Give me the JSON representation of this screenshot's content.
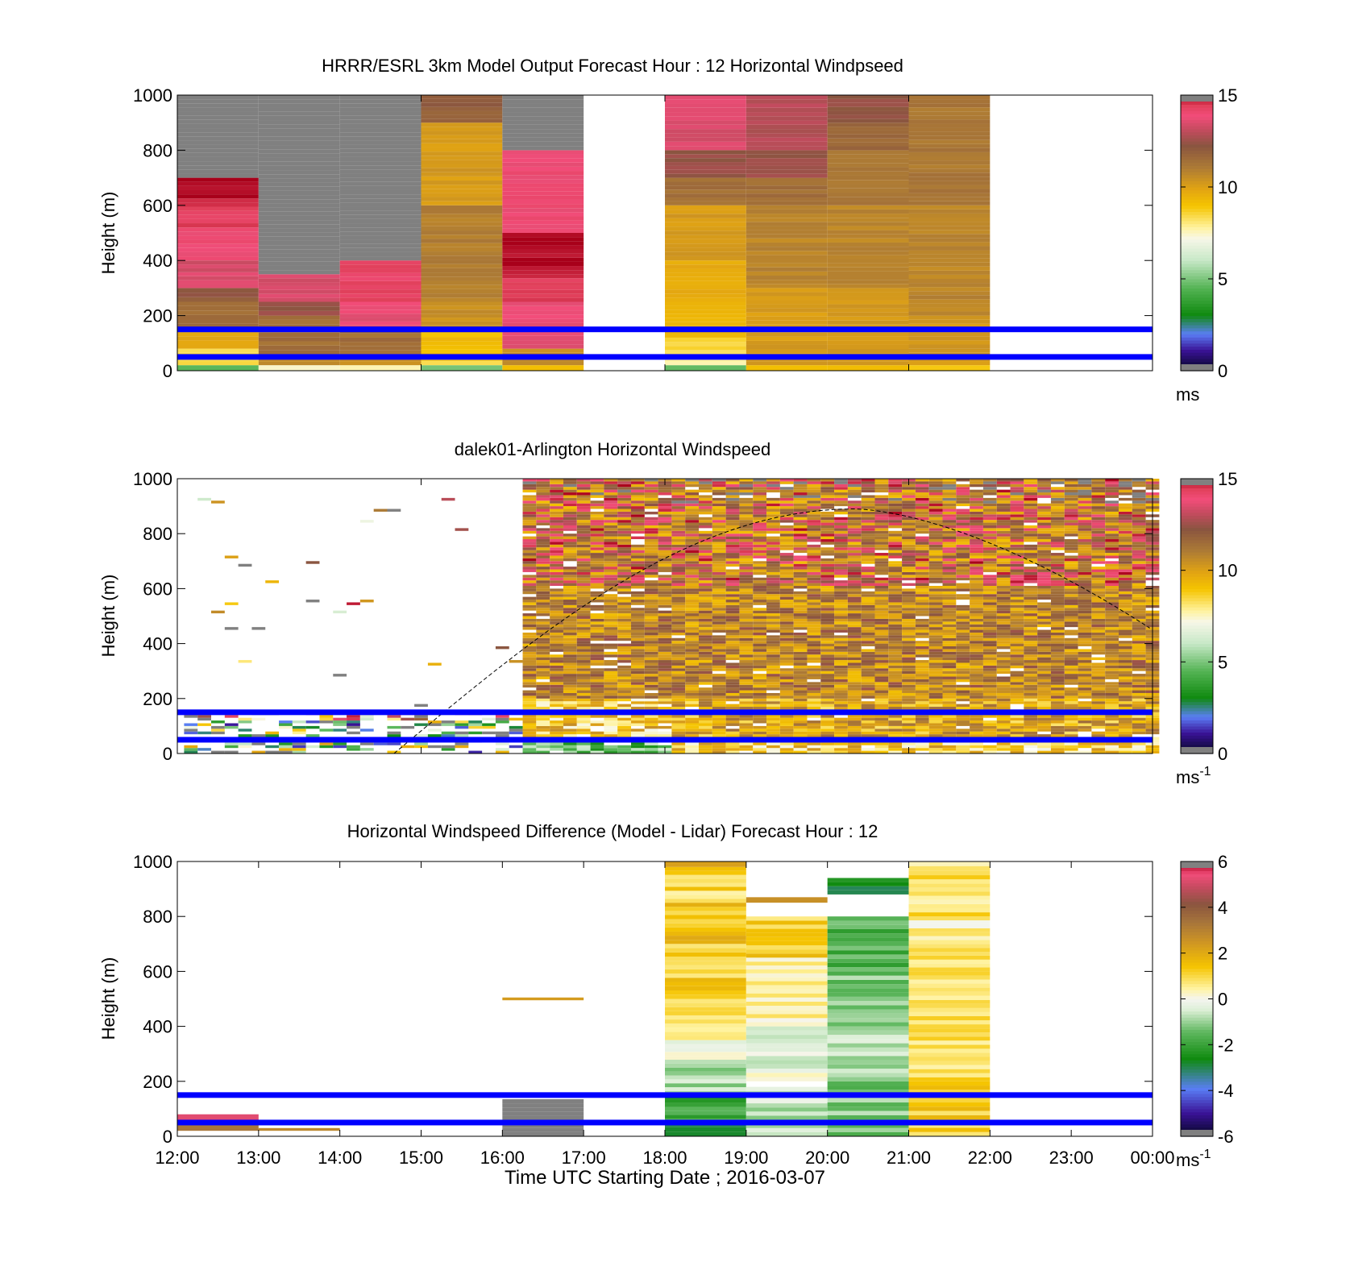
{
  "chart_data": [
    {
      "type": "heatmap",
      "title": "HRRR/ESRL 3km Model Output   Forecast Hour : 12 Horizontal Windpseed",
      "xlabel": "",
      "ylabel": "Height (m)",
      "ylim": [
        0,
        1000
      ],
      "yticks": [
        "0",
        "200",
        "400",
        "600",
        "800",
        "1000"
      ],
      "colorbar": {
        "min": 0,
        "max": 15,
        "ticks": [
          "0",
          "5",
          "10",
          "15"
        ],
        "unit": "ms",
        "unit_sup": ""
      },
      "time_range_hours": [
        12,
        24
      ],
      "reference_lines_m": [
        50,
        150
      ],
      "columns": [
        {
          "start": "12:00",
          "end": "13:00",
          "layers": [
            [
              0,
              20,
              4.5
            ],
            [
              20,
              80,
              8.5
            ],
            [
              80,
              140,
              10
            ],
            [
              140,
              250,
              11.5
            ],
            [
              250,
              300,
              12.2
            ],
            [
              300,
              400,
              13.5
            ],
            [
              400,
              520,
              14
            ],
            [
              520,
              610,
              14.5
            ],
            [
              610,
              700,
              14.9
            ],
            [
              700,
              1000,
              "nan"
            ]
          ]
        },
        {
          "start": "13:00",
          "end": "14:00",
          "layers": [
            [
              0,
              20,
              7.6
            ],
            [
              20,
              60,
              10.5
            ],
            [
              60,
              200,
              11.5
            ],
            [
              200,
              250,
              12.5
            ],
            [
              250,
              350,
              13.5
            ],
            [
              350,
              1000,
              "nan"
            ]
          ]
        },
        {
          "start": "14:00",
          "end": "15:00",
          "layers": [
            [
              0,
              20,
              7.6
            ],
            [
              20,
              60,
              10.5
            ],
            [
              60,
              150,
              11.5
            ],
            [
              150,
              250,
              13.8
            ],
            [
              250,
              400,
              14.3
            ],
            [
              400,
              1000,
              "nan"
            ]
          ]
        },
        {
          "start": "15:00",
          "end": "16:00",
          "layers": [
            [
              0,
              20,
              5
            ],
            [
              20,
              50,
              8.5
            ],
            [
              50,
              150,
              9.2
            ],
            [
              150,
              250,
              10.5
            ],
            [
              250,
              600,
              11
            ],
            [
              600,
              900,
              10.2
            ],
            [
              900,
              1000,
              12
            ]
          ]
        },
        {
          "start": "16:00",
          "end": "17:00",
          "layers": [
            [
              0,
              20,
              9.2
            ],
            [
              20,
              80,
              10.5
            ],
            [
              80,
              250,
              13.8
            ],
            [
              250,
              350,
              14.5
            ],
            [
              350,
              500,
              15
            ],
            [
              500,
              800,
              14
            ],
            [
              800,
              1000,
              "nan"
            ]
          ]
        },
        {
          "start": "18:00",
          "end": "19:00",
          "layers": [
            [
              0,
              20,
              4.5
            ],
            [
              20,
              60,
              7.6
            ],
            [
              60,
              120,
              8.5
            ],
            [
              120,
              250,
              9.5
            ],
            [
              250,
              400,
              9.8
            ],
            [
              400,
              600,
              10.2
            ],
            [
              600,
              700,
              11.5
            ],
            [
              700,
              800,
              12.5
            ],
            [
              800,
              1000,
              13.6
            ]
          ]
        },
        {
          "start": "19:00",
          "end": "20:00",
          "layers": [
            [
              0,
              20,
              9
            ],
            [
              20,
              300,
              10.2
            ],
            [
              300,
              600,
              10.8
            ],
            [
              600,
              700,
              11.5
            ],
            [
              700,
              800,
              12.5
            ],
            [
              800,
              1000,
              13
            ]
          ]
        },
        {
          "start": "20:00",
          "end": "21:00",
          "layers": [
            [
              0,
              20,
              9
            ],
            [
              20,
              300,
              10.2
            ],
            [
              300,
              600,
              10.8
            ],
            [
              600,
              800,
              11.2
            ],
            [
              800,
              900,
              11.7
            ],
            [
              900,
              1000,
              12.4
            ]
          ]
        },
        {
          "start": "21:00",
          "end": "22:00",
          "layers": [
            [
              0,
              20,
              9
            ],
            [
              20,
              200,
              10.2
            ],
            [
              200,
              600,
              10.8
            ],
            [
              600,
              1000,
              11.2
            ]
          ]
        }
      ]
    },
    {
      "type": "heatmap",
      "title": "dalek01-Arlington  Horizontal Windspeed",
      "xlabel": "",
      "ylabel": "Height (m)",
      "ylim": [
        0,
        1000
      ],
      "yticks": [
        "0",
        "200",
        "400",
        "600",
        "800",
        "1000"
      ],
      "colorbar": {
        "min": 0,
        "max": 15,
        "ticks": [
          "0",
          "5",
          "10",
          "15"
        ],
        "unit": "ms",
        "unit_sup": "-1"
      },
      "time_range_hours": [
        12,
        24
      ],
      "reference_lines_m": [
        50,
        150
      ],
      "boundary_layer_curve": {
        "start": "14:40",
        "peak_time": "20:20",
        "peak_height_m": 890,
        "end_height_m": 450
      }
    },
    {
      "type": "heatmap",
      "title": "Horizontal Windspeed Difference (Model - Lidar) Forecast Hour : 12",
      "xlabel": "Time UTC  Starting Date ; 2016-03-07",
      "ylabel": "Height (m)",
      "ylim": [
        0,
        1000
      ],
      "yticks": [
        "0",
        "200",
        "400",
        "600",
        "800",
        "1000"
      ],
      "xticks": [
        "12:00",
        "13:00",
        "14:00",
        "15:00",
        "16:00",
        "17:00",
        "18:00",
        "19:00",
        "20:00",
        "21:00",
        "22:00",
        "23:00",
        "00:00"
      ],
      "colorbar": {
        "min": -6,
        "max": 6,
        "ticks": [
          "-6",
          "-4",
          "-2",
          "0",
          "2",
          "4",
          "6"
        ],
        "unit": "ms",
        "unit_sup": "-1"
      },
      "time_range_hours": [
        12,
        24
      ],
      "reference_lines_m": [
        50,
        150
      ],
      "columns": [
        {
          "start": "12:00",
          "end": "13:00",
          "layers": [
            [
              20,
              40,
              3.5
            ],
            [
              40,
              60,
              4.5
            ],
            [
              60,
              80,
              5.5
            ]
          ]
        },
        {
          "start": "13:00",
          "end": "14:00",
          "layers": [
            [
              20,
              30,
              3
            ]
          ]
        },
        {
          "start": "16:00",
          "end": "17:00",
          "layers": [
            [
              0,
              135,
              "nan"
            ],
            [
              495,
              505,
              2.5
            ]
          ]
        },
        {
          "start": "18:00",
          "end": "19:00",
          "layers": [
            [
              0,
              50,
              -2.8
            ],
            [
              50,
              150,
              -2
            ],
            [
              150,
              250,
              -1
            ],
            [
              250,
              350,
              -0.3
            ],
            [
              350,
              500,
              0.7
            ],
            [
              500,
              700,
              1.2
            ],
            [
              700,
              850,
              1.5
            ],
            [
              850,
              980,
              1
            ],
            [
              980,
              1000,
              2.5
            ]
          ]
        },
        {
          "start": "19:00",
          "end": "20:00",
          "layers": [
            [
              0,
              150,
              -0.6
            ],
            [
              150,
              180,
              -0.8
            ],
            [
              200,
              400,
              -0.2
            ],
            [
              400,
              550,
              0.3
            ],
            [
              550,
              650,
              0.7
            ],
            [
              650,
              800,
              1.2
            ],
            [
              850,
              870,
              2.2
            ]
          ]
        },
        {
          "start": "20:00",
          "end": "21:00",
          "layers": [
            [
              0,
              200,
              -1.2
            ],
            [
              200,
              400,
              -0.8
            ],
            [
              400,
              600,
              -1.2
            ],
            [
              600,
              800,
              -1.6
            ],
            [
              880,
              940,
              -2.5
            ]
          ]
        },
        {
          "start": "21:00",
          "end": "22:00",
          "layers": [
            [
              0,
              200,
              1.2
            ],
            [
              200,
              600,
              1
            ],
            [
              600,
              700,
              0.6
            ],
            [
              700,
              800,
              0.4
            ],
            [
              800,
              950,
              0.8
            ],
            [
              950,
              1000,
              0.5
            ]
          ]
        }
      ]
    }
  ]
}
